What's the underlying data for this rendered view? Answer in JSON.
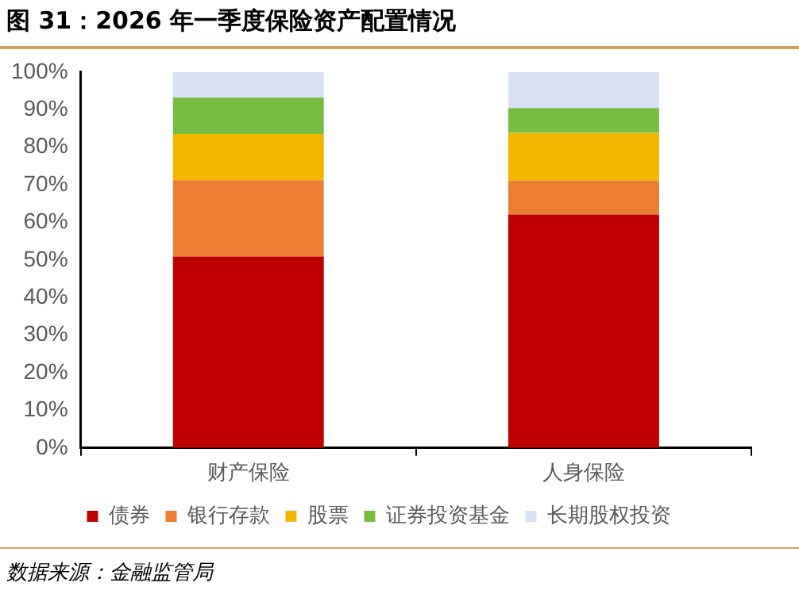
{
  "chart_data": {
    "type": "bar",
    "stacked": true,
    "title": "图 31：2026 年一季度保险资产配置情况",
    "categories": [
      "财产保险",
      "人身保险"
    ],
    "series": [
      {
        "name": "债券",
        "color": "#c00000",
        "values": [
          50.9,
          62.1
        ]
      },
      {
        "name": "银行存款",
        "color": "#ed7d31",
        "values": [
          20.3,
          9.0
        ]
      },
      {
        "name": "股票",
        "color": "#f2b800",
        "values": [
          12.3,
          12.7
        ]
      },
      {
        "name": "证券投资基金",
        "color": "#77bc43",
        "values": [
          9.7,
          6.6
        ]
      },
      {
        "name": "长期股权投资",
        "color": "#d9e1f4",
        "values": [
          6.8,
          9.6
        ]
      }
    ],
    "ylim": [
      0,
      100
    ],
    "yticks": [
      {
        "value": 0,
        "label": "0%"
      },
      {
        "value": 10,
        "label": "10%"
      },
      {
        "value": 20,
        "label": "20%"
      },
      {
        "value": 30,
        "label": "30%"
      },
      {
        "value": 40,
        "label": "40%"
      },
      {
        "value": 50,
        "label": "50%"
      },
      {
        "value": 60,
        "label": "60%"
      },
      {
        "value": 70,
        "label": "70%"
      },
      {
        "value": 80,
        "label": "80%"
      },
      {
        "value": 90,
        "label": "90%"
      },
      {
        "value": 100,
        "label": "100%"
      }
    ],
    "grid": false,
    "legend": "bottom",
    "annotations": [
      "数据来源：金融监管局"
    ]
  }
}
